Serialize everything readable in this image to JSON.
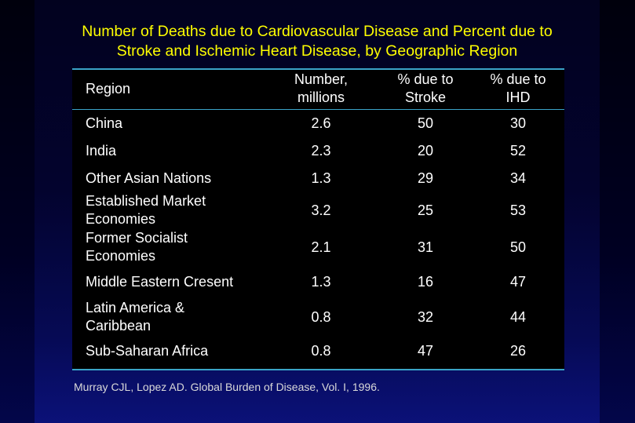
{
  "title_line1": "Number of Deaths due to Cardiovascular Disease and Percent due to",
  "title_line2": "Stroke and Ischemic Heart Disease, by Geographic Region",
  "chart_data": {
    "type": "table",
    "columns": [
      {
        "lines": [
          "Region"
        ]
      },
      {
        "lines": [
          "Number,",
          "millions"
        ]
      },
      {
        "lines": [
          "% due to",
          "Stroke"
        ]
      },
      {
        "lines": [
          "% due to",
          "IHD"
        ]
      }
    ],
    "rows": [
      {
        "region": [
          "China"
        ],
        "number": "2.6",
        "stroke": "50",
        "ihd": "30"
      },
      {
        "region": [
          "India"
        ],
        "number": "2.3",
        "stroke": "20",
        "ihd": "52"
      },
      {
        "region": [
          "Other Asian Nations"
        ],
        "number": "1.3",
        "stroke": "29",
        "ihd": "34"
      },
      {
        "region": [
          "Established Market",
          "Economies"
        ],
        "number": "3.2",
        "stroke": "25",
        "ihd": "53"
      },
      {
        "region": [
          "Former Socialist",
          "Economies"
        ],
        "number": "2.1",
        "stroke": "31",
        "ihd": "50"
      },
      {
        "region": [
          "Middle Eastern Cresent"
        ],
        "number": "1.3",
        "stroke": "16",
        "ihd": "47"
      },
      {
        "region": [
          "Latin America &",
          "Caribbean"
        ],
        "number": "0.8",
        "stroke": "32",
        "ihd": "44"
      },
      {
        "region": [
          "Sub-Saharan Africa"
        ],
        "number": "0.8",
        "stroke": "47",
        "ihd": "26"
      }
    ]
  },
  "source": "Murray CJL, Lopez AD. Global Burden of Disease, Vol. I, 1996.",
  "colors": {
    "title": "#ffff00",
    "rule": "#3aa3c8",
    "text": "#ffffff"
  }
}
